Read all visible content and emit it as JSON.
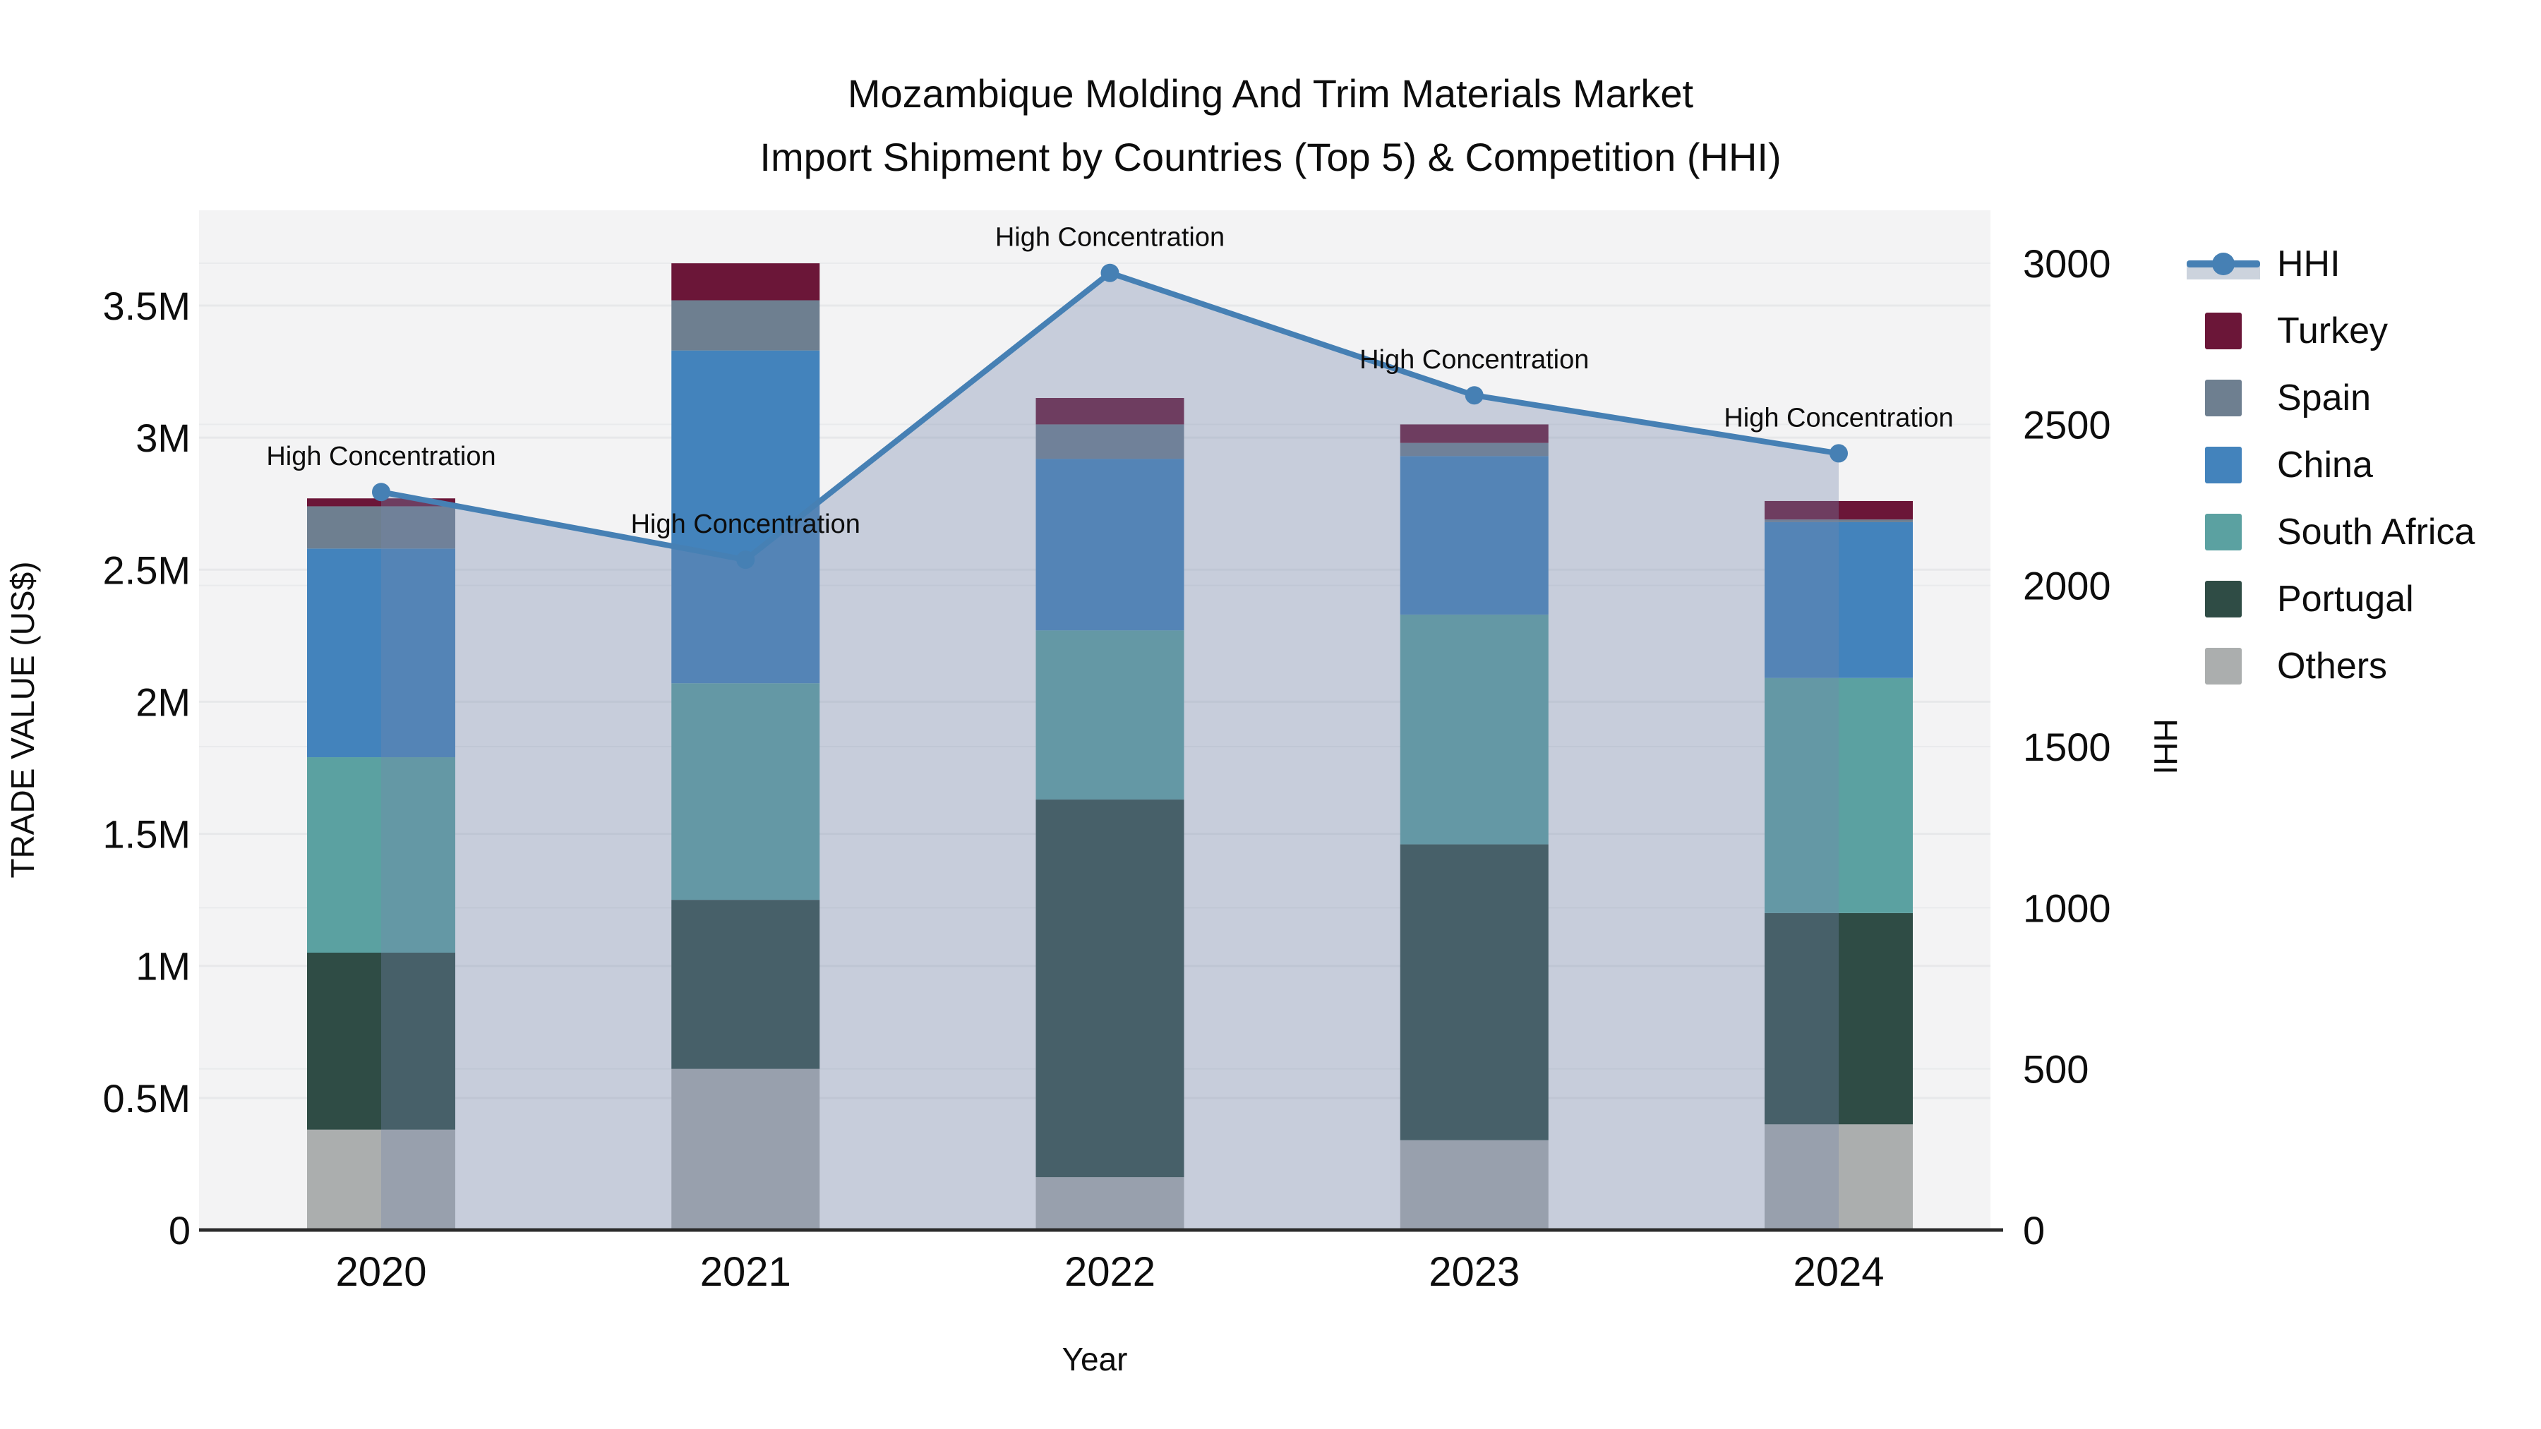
{
  "chart_data": {
    "type": "bar",
    "title_line1": "Mozambique Molding And Trim Materials Market",
    "title_line2": "Import Shipment by Countries (Top 5) & Competition (HHI)",
    "xlabel": "Year",
    "ylabel": "TRADE VALUE (US$)",
    "y2label": "HHI",
    "categories": [
      "2020",
      "2021",
      "2022",
      "2023",
      "2024"
    ],
    "values_unit": "million US$",
    "stacking_note": "series listed top-of-stack first; bars stacked bottom-up in reverse order",
    "series": [
      {
        "name": "Turkey",
        "color": "#6b1638",
        "values": [
          0.03,
          0.14,
          0.1,
          0.07,
          0.07
        ]
      },
      {
        "name": "Spain",
        "color": "#6e7f90",
        "values": [
          0.16,
          0.19,
          0.13,
          0.05,
          0.01
        ]
      },
      {
        "name": "China",
        "color": "#4383bc",
        "values": [
          0.79,
          1.26,
          0.65,
          0.6,
          0.59
        ]
      },
      {
        "name": "South Africa",
        "color": "#5ba1a1",
        "values": [
          0.74,
          0.82,
          0.64,
          0.87,
          0.89
        ]
      },
      {
        "name": "Portugal",
        "color": "#2f4c45",
        "values": [
          0.67,
          0.64,
          1.43,
          1.12,
          0.8
        ]
      },
      {
        "name": "Others",
        "color": "#abaeae",
        "values": [
          0.38,
          0.61,
          0.2,
          0.34,
          0.4
        ]
      }
    ],
    "line": {
      "name": "HHI",
      "color": "#4680b4",
      "fill_color": "rgba(118,134,172,0.35)",
      "legend_band": "#ccd3dd",
      "values": [
        2290,
        2080,
        2970,
        2590,
        2410
      ],
      "annotation": "High Concentration"
    },
    "y_axis": {
      "ticks": [
        "0",
        "0.5M",
        "1M",
        "1.5M",
        "2M",
        "2.5M",
        "3M",
        "3.5M"
      ],
      "tick_values": [
        0,
        0.5,
        1,
        1.5,
        2,
        2.5,
        3,
        3.5
      ],
      "max_value": 3.86
    },
    "y2_axis": {
      "ticks": [
        "0",
        "500",
        "1000",
        "1500",
        "2000",
        "2500",
        "3000"
      ],
      "tick_values": [
        0,
        500,
        1000,
        1500,
        2000,
        2500,
        3000
      ],
      "max_value": 3164
    },
    "style": {
      "plot_bg": "#f3f3f4",
      "grid_major": "#e7e8ea",
      "grid_minor": "#e9eaec",
      "axis_line": "#2b2b2b",
      "text": "#0d0d0d"
    },
    "legend_position": "right"
  }
}
